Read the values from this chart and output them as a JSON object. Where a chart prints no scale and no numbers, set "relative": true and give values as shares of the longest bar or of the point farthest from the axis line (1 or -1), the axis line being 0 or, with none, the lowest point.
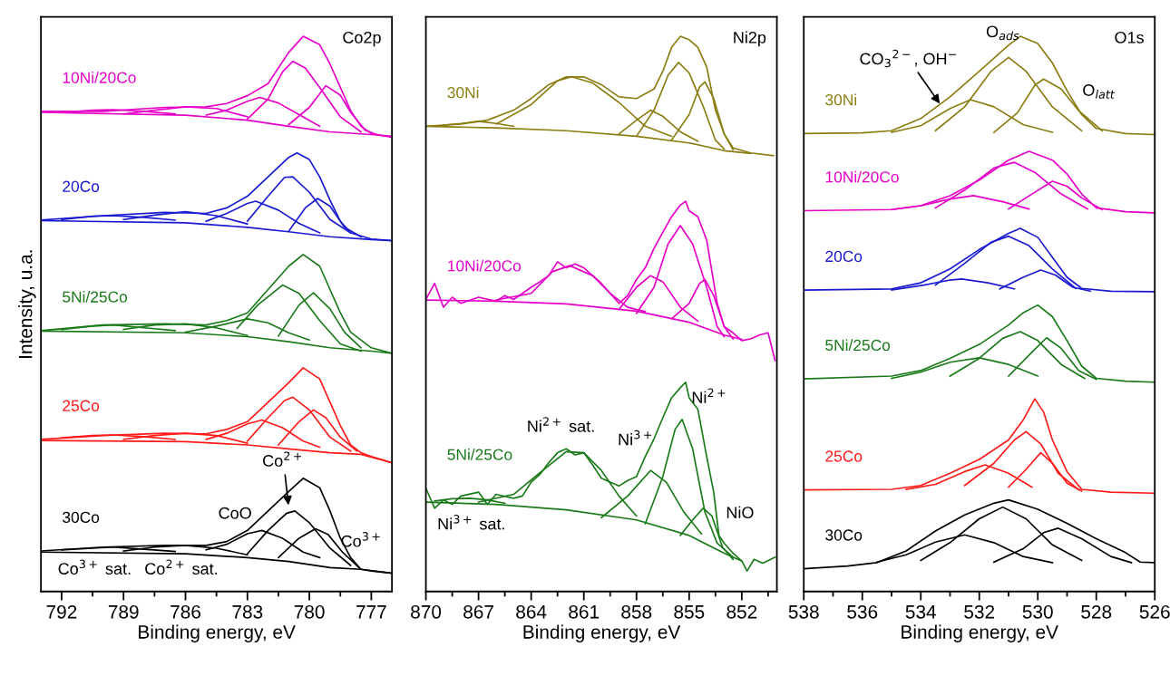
{
  "chart_data": [
    {
      "type": "line",
      "relative": true,
      "xlabel": "Binding energy, eV",
      "ylabel": "Intensity, u.a.",
      "tick_labels": "x",
      "line_style": "solid",
      "xlim": [
        793,
        776
      ],
      "xticks": [
        792,
        {
          "value": 790.5,
          "label": null
        },
        789,
        {
          "value": 787.5,
          "label": null
        },
        786,
        {
          "value": 784.5,
          "label": null
        },
        783,
        {
          "value": 781.5,
          "label": null
        },
        780,
        {
          "value": 778.5,
          "label": null
        },
        777
      ],
      "annotations": [
        "Co2p",
        {
          "text": "Co$^{2+}$",
          "x": 781.0,
          "y": 0.151
        },
        "CoO",
        "Co$^{3+}$",
        "Co$^{3+}$ sat.",
        "Co$^{2+}$ sat."
      ],
      "series": [
        {
          "name": "10Ni/20Co",
          "color": "#e600c8",
          "x": [
            793,
            790,
            787,
            785,
            784,
            783,
            782,
            781,
            780.3,
            779.5,
            779,
            778.5,
            778,
            777.5,
            777,
            776
          ],
          "values": [
            0.865,
            0.865,
            0.872,
            0.873,
            0.879,
            0.893,
            0.915,
            0.971,
            1.0,
            0.985,
            0.95,
            0.908,
            0.866,
            0.838,
            0.825,
            0.818
          ]
        },
        {
          "color": "#e600c8",
          "x": [
            793,
            786,
            783,
            781,
            779,
            777,
            776
          ],
          "values": [
            0.863,
            0.858,
            0.849,
            0.838,
            0.828,
            0.823,
            0.82
          ]
        },
        {
          "color": "#e600c8",
          "x": [
            785,
            784,
            783,
            782.4,
            781.5,
            780.5,
            779.5
          ],
          "values": [
            0.858,
            0.867,
            0.883,
            0.89,
            0.88,
            0.859,
            0.838
          ]
        },
        {
          "color": "#e600c8",
          "x": [
            783,
            782,
            781.3,
            780.8,
            780.2,
            779.5,
            778.5,
            777.5
          ],
          "values": [
            0.851,
            0.887,
            0.936,
            0.955,
            0.943,
            0.908,
            0.855,
            0.828
          ]
        },
        {
          "color": "#e600c8",
          "x": [
            781,
            780,
            779.2,
            778.5,
            778,
            777.3,
            776.8
          ],
          "values": [
            0.841,
            0.872,
            0.911,
            0.894,
            0.863,
            0.831,
            0.824
          ]
        },
        {
          "color": "#e600c8",
          "x": [
            789,
            787.5,
            786,
            784.5,
            783
          ],
          "values": [
            0.86,
            0.867,
            0.873,
            0.87,
            0.855
          ]
        },
        {
          "color": "#e600c8",
          "x": [
            792,
            790.5,
            789.5,
            788,
            786.5
          ],
          "values": [
            0.863,
            0.867,
            0.868,
            0.865,
            0.86
          ]
        },
        {
          "name": "20Co",
          "color": "#1a1ad0",
          "x": [
            793,
            790,
            787,
            785,
            784,
            783,
            782,
            781,
            780.6,
            780,
            779.5,
            779,
            778.5,
            778,
            777,
            776
          ],
          "values": [
            0.669,
            0.677,
            0.683,
            0.681,
            0.691,
            0.712,
            0.747,
            0.782,
            0.79,
            0.778,
            0.747,
            0.705,
            0.667,
            0.646,
            0.635,
            0.632
          ]
        },
        {
          "color": "#1a1ad0",
          "x": [
            793,
            786,
            783,
            781,
            779,
            777,
            776
          ],
          "values": [
            0.668,
            0.664,
            0.656,
            0.648,
            0.639,
            0.634,
            0.632
          ]
        },
        {
          "color": "#1a1ad0",
          "x": [
            785,
            784,
            783,
            782.6,
            781.5,
            780.5,
            779.5
          ],
          "values": [
            0.667,
            0.681,
            0.699,
            0.703,
            0.687,
            0.663,
            0.646
          ]
        },
        {
          "color": "#1a1ad0",
          "x": [
            783,
            782,
            781.2,
            780.8,
            780,
            779,
            778
          ],
          "values": [
            0.667,
            0.712,
            0.746,
            0.747,
            0.719,
            0.67,
            0.646
          ]
        },
        {
          "color": "#1a1ad0",
          "x": [
            781,
            780.2,
            779.6,
            779,
            778.3,
            777.5
          ],
          "values": [
            0.649,
            0.691,
            0.708,
            0.694,
            0.656,
            0.639
          ]
        },
        {
          "color": "#1a1ad0",
          "x": [
            789,
            787.5,
            786,
            784.5,
            783
          ],
          "values": [
            0.67,
            0.678,
            0.684,
            0.677,
            0.662
          ]
        },
        {
          "color": "#1a1ad0",
          "x": [
            792,
            790.5,
            789.5,
            788,
            786.5
          ],
          "values": [
            0.67,
            0.676,
            0.677,
            0.674,
            0.669
          ]
        },
        {
          "name": "5Ni/25Co",
          "color": "#1a7a1a",
          "x": [
            793,
            790,
            787,
            785,
            784,
            783,
            782,
            781,
            780.3,
            779.5,
            779,
            778.5,
            778,
            777,
            776
          ],
          "values": [
            0.47,
            0.48,
            0.482,
            0.48,
            0.488,
            0.502,
            0.544,
            0.586,
            0.607,
            0.586,
            0.544,
            0.502,
            0.467,
            0.439,
            0.429
          ]
        },
        {
          "color": "#1a7a1a",
          "x": [
            793,
            786,
            783,
            781,
            779,
            777,
            776
          ],
          "values": [
            0.469,
            0.466,
            0.459,
            0.45,
            0.439,
            0.433,
            0.429
          ]
        },
        {
          "color": "#1a7a1a",
          "x": [
            786,
            784.5,
            783,
            782,
            781,
            780
          ],
          "values": [
            0.467,
            0.478,
            0.491,
            0.484,
            0.466,
            0.453
          ]
        },
        {
          "color": "#1a7a1a",
          "x": [
            783.5,
            782.5,
            781.3,
            780.5,
            779.5,
            778.5,
            777.5
          ],
          "values": [
            0.474,
            0.516,
            0.552,
            0.537,
            0.488,
            0.446,
            0.433
          ]
        },
        {
          "color": "#1a7a1a",
          "x": [
            781.5,
            780.5,
            779.8,
            779,
            778.3,
            777.5
          ],
          "values": [
            0.46,
            0.516,
            0.538,
            0.509,
            0.467,
            0.439
          ]
        },
        {
          "color": "#1a7a1a",
          "x": [
            789,
            787.5,
            786,
            784.5,
            783
          ],
          "values": [
            0.472,
            0.48,
            0.482,
            0.475,
            0.461
          ]
        },
        {
          "color": "#1a7a1a",
          "x": [
            792,
            790.5,
            789.5,
            788,
            786.5
          ],
          "values": [
            0.472,
            0.478,
            0.48,
            0.475,
            0.47
          ]
        },
        {
          "name": "25Co",
          "color": "#ff1a1a",
          "x": [
            793,
            790,
            787,
            785,
            784,
            783,
            782,
            781,
            780.3,
            779.5,
            779,
            778.5,
            778,
            777.5,
            777,
            776
          ],
          "values": [
            0.274,
            0.281,
            0.285,
            0.284,
            0.292,
            0.306,
            0.341,
            0.376,
            0.403,
            0.383,
            0.341,
            0.299,
            0.264,
            0.25,
            0.243,
            0.232
          ]
        },
        {
          "color": "#ff1a1a",
          "x": [
            793,
            786,
            783,
            781,
            779,
            777.5,
            776
          ],
          "values": [
            0.272,
            0.27,
            0.264,
            0.257,
            0.25,
            0.247,
            0.232
          ]
        },
        {
          "color": "#ff1a1a",
          "x": [
            785,
            784,
            783,
            782.3,
            781.3,
            780.3,
            779.5
          ],
          "values": [
            0.274,
            0.285,
            0.302,
            0.309,
            0.295,
            0.271,
            0.26
          ]
        },
        {
          "color": "#ff1a1a",
          "x": [
            783,
            782,
            781.2,
            780.8,
            780,
            779,
            778
          ],
          "values": [
            0.271,
            0.313,
            0.344,
            0.35,
            0.327,
            0.278,
            0.253
          ]
        },
        {
          "color": "#ff1a1a",
          "x": [
            781.5,
            780.5,
            779.8,
            779.2,
            778.5,
            777.7
          ],
          "values": [
            0.264,
            0.306,
            0.327,
            0.313,
            0.278,
            0.253
          ]
        },
        {
          "color": "#ff1a1a",
          "x": [
            789,
            787.5,
            786,
            784.5,
            783
          ],
          "values": [
            0.274,
            0.281,
            0.285,
            0.281,
            0.267
          ]
        },
        {
          "color": "#ff1a1a",
          "x": [
            792,
            790.5,
            789.5,
            788,
            786.5
          ],
          "values": [
            0.277,
            0.281,
            0.282,
            0.279,
            0.274
          ]
        },
        {
          "name": "30Co",
          "color": "#000000",
          "x": [
            793,
            790,
            787,
            785,
            784,
            783,
            782,
            781,
            780.3,
            779.5,
            779,
            778.5,
            778,
            777.5,
            777,
            776
          ],
          "values": [
            0.073,
            0.08,
            0.083,
            0.083,
            0.09,
            0.11,
            0.145,
            0.18,
            0.204,
            0.187,
            0.145,
            0.096,
            0.061,
            0.04,
            0.037,
            0.033
          ]
        },
        {
          "color": "#000000",
          "x": [
            793,
            786,
            783,
            781,
            779,
            777.5,
            776
          ],
          "values": [
            0.071,
            0.068,
            0.061,
            0.054,
            0.043,
            0.04,
            0.033
          ]
        },
        {
          "color": "#000000",
          "x": [
            785,
            784,
            783,
            782.3,
            781.3,
            780.3,
            779.5
          ],
          "values": [
            0.075,
            0.085,
            0.104,
            0.11,
            0.096,
            0.071,
            0.061
          ]
        },
        {
          "color": "#000000",
          "x": [
            783,
            782,
            781.1,
            780.7,
            780,
            779,
            778
          ],
          "values": [
            0.068,
            0.11,
            0.141,
            0.145,
            0.124,
            0.078,
            0.047
          ]
        },
        {
          "color": "#000000",
          "x": [
            781.5,
            780.5,
            779.7,
            779.1,
            778.4,
            777.6
          ],
          "values": [
            0.061,
            0.096,
            0.113,
            0.103,
            0.071,
            0.043
          ]
        },
        {
          "color": "#000000",
          "x": [
            789,
            787.5,
            786,
            784.5,
            783
          ],
          "values": [
            0.073,
            0.08,
            0.083,
            0.078,
            0.066
          ]
        },
        {
          "color": "#000000",
          "x": [
            792,
            790.5,
            789.5,
            788,
            786.5
          ],
          "values": [
            0.075,
            0.078,
            0.08,
            0.076,
            0.072
          ]
        }
      ]
    },
    {
      "type": "line",
      "relative": true,
      "xlabel": "Binding energy, eV",
      "tick_labels": "x",
      "line_style": "solid",
      "xlim": [
        870,
        850
      ],
      "xticks": [
        870,
        {
          "value": 868.5,
          "label": null
        },
        867,
        {
          "value": 865.5,
          "label": null
        },
        864,
        {
          "value": 862.5,
          "label": null
        },
        861,
        {
          "value": 859.5,
          "label": null
        },
        858,
        {
          "value": 856.5,
          "label": null
        },
        855,
        {
          "value": 853.5,
          "label": null
        },
        852,
        {
          "value": 850.5,
          "label": null
        }
      ],
      "annotations": [
        "Ni2p",
        "Ni$^{2+}$ sat.",
        "Ni$^{3+}$",
        "Ni$^{2+}$",
        "NiO",
        "Ni$^{3+}$ sat."
      ],
      "series": [
        {
          "name": "30Ni",
          "color": "#8b7d12",
          "x": [
            870,
            868,
            866.5,
            865,
            864,
            863,
            862,
            861,
            860,
            859,
            858,
            857,
            856.5,
            856,
            855.5,
            855,
            854.5,
            854,
            853.5,
            853,
            852.5,
            851.5,
            850.2
          ],
          "values": [
            0.838,
            0.842,
            0.849,
            0.867,
            0.888,
            0.913,
            0.927,
            0.927,
            0.913,
            0.891,
            0.888,
            0.905,
            0.937,
            0.98,
            1.0,
            0.994,
            0.98,
            0.945,
            0.867,
            0.824,
            0.799,
            0.79,
            0.785
          ]
        },
        {
          "color": "#8b7d12",
          "x": [
            870,
            866,
            862,
            858,
            855,
            853,
            851.5
          ],
          "values": [
            0.838,
            0.835,
            0.83,
            0.82,
            0.808,
            0.794,
            0.789
          ]
        },
        {
          "color": "#8b7d12",
          "x": [
            866,
            864,
            862.5,
            861.7,
            860.5,
            859,
            857.5,
            856
          ],
          "values": [
            0.842,
            0.877,
            0.92,
            0.927,
            0.916,
            0.881,
            0.838,
            0.82
          ]
        },
        {
          "color": "#8b7d12",
          "x": [
            869,
            868,
            867,
            866,
            865
          ],
          "values": [
            0.84,
            0.843,
            0.847,
            0.843,
            0.838
          ]
        },
        {
          "color": "#8b7d12",
          "x": [
            859,
            858,
            857.2,
            856.5,
            855.5,
            854.5
          ],
          "values": [
            0.824,
            0.849,
            0.867,
            0.856,
            0.828,
            0.811
          ]
        },
        {
          "color": "#8b7d12",
          "x": [
            858,
            857,
            856.2,
            855.6,
            855,
            854.2,
            853.5,
            853
          ],
          "values": [
            0.82,
            0.867,
            0.93,
            0.953,
            0.934,
            0.874,
            0.813,
            0.797
          ]
        },
        {
          "color": "#8b7d12",
          "x": [
            856,
            855,
            854.4,
            854.1,
            853.6,
            853,
            852.5
          ],
          "values": [
            0.813,
            0.859,
            0.909,
            0.918,
            0.888,
            0.824,
            0.796
          ]
        },
        {
          "name": "10Ni/20Co",
          "color": "#e600c8",
          "x": [
            870,
            869.5,
            869,
            868.5,
            868,
            867,
            866,
            865.5,
            865,
            864.5,
            864,
            863.5,
            863,
            862.5,
            862,
            861.5,
            861,
            860.5,
            860,
            859.5,
            859,
            858.5,
            858,
            857.5,
            857,
            856.5,
            856,
            855.5,
            855.2,
            855,
            854.5,
            854,
            853.7,
            853.4,
            853,
            852.5,
            852,
            851.5,
            851,
            850.5,
            850.1
          ],
          "values": [
            0.526,
            0.555,
            0.512,
            0.53,
            0.519,
            0.53,
            0.523,
            0.533,
            0.526,
            0.537,
            0.548,
            0.558,
            0.569,
            0.594,
            0.583,
            0.59,
            0.583,
            0.569,
            0.555,
            0.537,
            0.519,
            0.533,
            0.562,
            0.583,
            0.618,
            0.647,
            0.675,
            0.696,
            0.703,
            0.686,
            0.675,
            0.633,
            0.576,
            0.519,
            0.477,
            0.466,
            0.452,
            0.455,
            0.462,
            0.466,
            0.416
          ]
        },
        {
          "color": "#e600c8",
          "x": [
            870,
            866,
            862,
            858,
            855,
            853,
            852
          ],
          "values": [
            0.525,
            0.523,
            0.518,
            0.505,
            0.485,
            0.462,
            0.454
          ]
        },
        {
          "color": "#e600c8",
          "x": [
            866,
            864,
            862.8,
            861.8,
            860.5,
            859.5,
            858.5,
            857.5
          ],
          "values": [
            0.525,
            0.537,
            0.576,
            0.587,
            0.569,
            0.537,
            0.512,
            0.504
          ]
        },
        {
          "color": "#e600c8",
          "x": [
            859,
            858,
            857.2,
            856.5,
            855.5,
            854.5
          ],
          "values": [
            0.508,
            0.548,
            0.569,
            0.558,
            0.512,
            0.487
          ]
        },
        {
          "color": "#e600c8",
          "x": [
            858,
            857,
            856.2,
            855.5,
            854.8,
            854,
            853.4,
            853
          ],
          "values": [
            0.501,
            0.548,
            0.626,
            0.659,
            0.626,
            0.548,
            0.477,
            0.459
          ]
        },
        {
          "color": "#e600c8",
          "x": [
            856,
            855,
            854.4,
            854.1,
            853.6,
            853,
            852.5
          ],
          "values": [
            0.491,
            0.519,
            0.555,
            0.562,
            0.533,
            0.477,
            0.455
          ]
        },
        {
          "name": "5Ni/25Co",
          "color": "#1a7a1a",
          "x": [
            870,
            869.5,
            869,
            868.5,
            868,
            867,
            866.5,
            866,
            865,
            864.5,
            864,
            863.5,
            863,
            862.5,
            862,
            861.5,
            861,
            860.5,
            860,
            859.5,
            859,
            858.5,
            858,
            857.5,
            857,
            856.5,
            856,
            855.5,
            855.2,
            855,
            854.5,
            854,
            853.6,
            853.3,
            853,
            852.5,
            852,
            851.7,
            851.3,
            850.8,
            850.1
          ],
          "values": [
            0.186,
            0.15,
            0.165,
            0.157,
            0.172,
            0.179,
            0.157,
            0.175,
            0.168,
            0.172,
            0.197,
            0.211,
            0.232,
            0.25,
            0.257,
            0.246,
            0.25,
            0.228,
            0.204,
            0.197,
            0.19,
            0.2,
            0.207,
            0.243,
            0.275,
            0.313,
            0.349,
            0.367,
            0.377,
            0.349,
            0.328,
            0.243,
            0.179,
            0.101,
            0.087,
            0.069,
            0.055,
            0.037,
            0.058,
            0.051,
            0.062
          ]
        },
        {
          "color": "#1a7a1a",
          "x": [
            870,
            866,
            862,
            858,
            855,
            853,
            852
          ],
          "values": [
            0.161,
            0.157,
            0.147,
            0.129,
            0.101,
            0.069,
            0.055
          ]
        },
        {
          "color": "#1a7a1a",
          "x": [
            867,
            865,
            863.5,
            862,
            861,
            860,
            859,
            858
          ],
          "values": [
            0.161,
            0.175,
            0.214,
            0.252,
            0.25,
            0.218,
            0.172,
            0.136
          ]
        },
        {
          "color": "#1a7a1a",
          "x": [
            869.5,
            868.5,
            867.5,
            866.5,
            865.5
          ],
          "values": [
            0.163,
            0.167,
            0.168,
            0.165,
            0.159
          ]
        },
        {
          "color": "#1a7a1a",
          "x": [
            860,
            858.5,
            857.2,
            856.3,
            855.3,
            854.3
          ],
          "values": [
            0.133,
            0.172,
            0.218,
            0.197,
            0.143,
            0.104
          ]
        },
        {
          "color": "#1a7a1a",
          "x": [
            857.5,
            856.5,
            855.8,
            855.4,
            854.8,
            854.1,
            853.4,
            852.5
          ],
          "values": [
            0.122,
            0.207,
            0.292,
            0.31,
            0.257,
            0.143,
            0.087,
            0.062
          ]
        },
        {
          "color": "#1a7a1a",
          "x": [
            855.5,
            854.8,
            854.2,
            853.7,
            853.1,
            852.5
          ],
          "values": [
            0.101,
            0.129,
            0.15,
            0.136,
            0.08,
            0.058
          ]
        }
      ]
    },
    {
      "type": "line",
      "relative": true,
      "xlabel": "Binding energy, eV",
      "tick_labels": "x",
      "line_style": "solid",
      "xlim": [
        538,
        526
      ],
      "xticks": [
        538,
        {
          "value": 537,
          "label": null
        },
        536,
        {
          "value": 535,
          "label": null
        },
        534,
        {
          "value": 533,
          "label": null
        },
        532,
        {
          "value": 531,
          "label": null
        },
        530,
        {
          "value": 529,
          "label": null
        },
        528,
        {
          "value": 527,
          "label": null
        },
        526
      ],
      "annotations": [
        "O1s",
        {
          "text": "CO$_{3}$$^{2−}$, OH$^{−}$",
          "x": 533.3,
          "y": 0.875
        },
        "O$_{ads}$",
        "O$_{latt}$"
      ],
      "series": [
        {
          "name": "30Ni",
          "color": "#8b7d12",
          "x": [
            538,
            536,
            535,
            534,
            533,
            532,
            531,
            530.6,
            530,
            529.5,
            529,
            528.5,
            528,
            527,
            526
          ],
          "values": [
            0.825,
            0.826,
            0.83,
            0.852,
            0.891,
            0.937,
            0.984,
            1.0,
            0.987,
            0.952,
            0.902,
            0.859,
            0.834,
            0.825,
            0.823
          ]
        },
        {
          "color": "#8b7d12",
          "x": [
            535,
            534,
            533,
            532.3,
            531.5,
            530.5,
            529.5
          ],
          "values": [
            0.827,
            0.839,
            0.87,
            0.886,
            0.873,
            0.841,
            0.827
          ]
        },
        {
          "color": "#8b7d12",
          "x": [
            533.5,
            532.5,
            531.6,
            531,
            530.4,
            529.5,
            528.5
          ],
          "values": [
            0.83,
            0.873,
            0.937,
            0.962,
            0.937,
            0.873,
            0.83
          ]
        },
        {
          "color": "#8b7d12",
          "x": [
            531.5,
            530.7,
            530.1,
            529.8,
            529.2,
            528.6,
            527.8
          ],
          "values": [
            0.827,
            0.862,
            0.912,
            0.923,
            0.905,
            0.866,
            0.83
          ]
        },
        {
          "name": "10Ni/20Co",
          "color": "#e600c8",
          "x": [
            538,
            535,
            534,
            533,
            532,
            531,
            530.3,
            529.5,
            529,
            528.5,
            528,
            527,
            526
          ],
          "values": [
            0.686,
            0.688,
            0.695,
            0.713,
            0.741,
            0.777,
            0.793,
            0.777,
            0.752,
            0.716,
            0.691,
            0.684,
            0.682
          ]
        },
        {
          "color": "#e600c8",
          "x": [
            535,
            534,
            533,
            532.2,
            531.2,
            530.3
          ],
          "values": [
            0.688,
            0.695,
            0.707,
            0.713,
            0.702,
            0.689
          ]
        },
        {
          "color": "#e600c8",
          "x": [
            533.5,
            532.5,
            531.5,
            530.8,
            530.1,
            529.2,
            528.3
          ],
          "values": [
            0.691,
            0.723,
            0.763,
            0.773,
            0.755,
            0.716,
            0.689
          ]
        },
        {
          "color": "#e600c8",
          "x": [
            531,
            530.2,
            529.5,
            529,
            528.5,
            527.8
          ],
          "values": [
            0.689,
            0.716,
            0.739,
            0.73,
            0.709,
            0.688
          ]
        },
        {
          "name": "20Co",
          "color": "#1a1ad0",
          "x": [
            538,
            535,
            534,
            533,
            532,
            531,
            530.6,
            530,
            529.5,
            529,
            528.5,
            527.5,
            526
          ],
          "values": [
            0.543,
            0.545,
            0.556,
            0.581,
            0.616,
            0.645,
            0.654,
            0.638,
            0.602,
            0.566,
            0.546,
            0.541,
            0.54
          ]
        },
        {
          "color": "#1a1ad0",
          "x": [
            535,
            534,
            533,
            532.6,
            531.7,
            530.8
          ],
          "values": [
            0.543,
            0.551,
            0.561,
            0.563,
            0.556,
            0.545
          ]
        },
        {
          "color": "#1a1ad0",
          "x": [
            533.5,
            532.5,
            531.6,
            531,
            530.3,
            529.5,
            528.7
          ],
          "values": [
            0.552,
            0.591,
            0.629,
            0.64,
            0.623,
            0.581,
            0.546
          ]
        },
        {
          "color": "#1a1ad0",
          "x": [
            531.3,
            530.5,
            529.9,
            529.4,
            528.8,
            528.2
          ],
          "values": [
            0.545,
            0.566,
            0.579,
            0.57,
            0.548,
            0.541
          ]
        },
        {
          "name": "5Ni/25Co",
          "color": "#1a7a1a",
          "x": [
            538,
            535,
            534,
            533,
            532,
            531,
            530.5,
            530,
            529.5,
            529,
            528.5,
            528,
            527,
            526
          ],
          "values": [
            0.383,
            0.388,
            0.398,
            0.42,
            0.445,
            0.48,
            0.502,
            0.516,
            0.495,
            0.452,
            0.406,
            0.384,
            0.379,
            0.377
          ]
        },
        {
          "color": "#1a7a1a",
          "x": [
            535,
            534,
            533,
            532,
            531,
            530
          ],
          "values": [
            0.384,
            0.395,
            0.413,
            0.421,
            0.409,
            0.388
          ]
        },
        {
          "color": "#1a7a1a",
          "x": [
            533,
            532,
            531.2,
            530.6,
            530,
            529.2,
            528.4
          ],
          "values": [
            0.388,
            0.42,
            0.456,
            0.468,
            0.452,
            0.409,
            0.384
          ]
        },
        {
          "color": "#1a7a1a",
          "x": [
            531,
            530.2,
            529.7,
            529.2,
            528.6,
            528
          ],
          "values": [
            0.388,
            0.431,
            0.457,
            0.438,
            0.398,
            0.382
          ]
        },
        {
          "name": "25Co",
          "color": "#ff1a1a",
          "x": [
            538,
            535,
            534,
            533,
            532,
            531,
            530.5,
            530.1,
            529.8,
            529.5,
            529,
            528.5,
            527.5,
            526
          ],
          "values": [
            0.183,
            0.184,
            0.191,
            0.213,
            0.238,
            0.273,
            0.309,
            0.347,
            0.323,
            0.273,
            0.216,
            0.184,
            0.179,
            0.177
          ]
        },
        {
          "color": "#ff1a1a",
          "x": [
            534.5,
            533.5,
            532.5,
            531.8,
            531,
            530.2
          ],
          "values": [
            0.184,
            0.193,
            0.216,
            0.228,
            0.213,
            0.188
          ]
        },
        {
          "color": "#ff1a1a",
          "x": [
            532.5,
            531.5,
            530.8,
            530.4,
            529.9,
            529.3,
            528.6
          ],
          "values": [
            0.191,
            0.231,
            0.273,
            0.288,
            0.266,
            0.213,
            0.183
          ]
        },
        {
          "color": "#ff1a1a",
          "x": [
            531,
            530.4,
            529.9,
            529.5,
            529,
            528.5
          ],
          "values": [
            0.188,
            0.22,
            0.25,
            0.231,
            0.195,
            0.181
          ]
        },
        {
          "name": "30Co",
          "color": "#000000",
          "x": [
            538,
            536.5,
            535.5,
            534.5,
            533.5,
            532.5,
            531.5,
            531,
            530,
            529,
            528,
            527,
            526.5,
            526
          ],
          "values": [
            0.041,
            0.046,
            0.052,
            0.073,
            0.109,
            0.138,
            0.159,
            0.165,
            0.148,
            0.123,
            0.095,
            0.07,
            0.053,
            0.052
          ]
        },
        {
          "color": "#000000",
          "x": [
            535.5,
            534.5,
            533.5,
            532.5,
            531.5,
            530.5,
            529.5
          ],
          "values": [
            0.053,
            0.066,
            0.089,
            0.102,
            0.088,
            0.063,
            0.052
          ]
        },
        {
          "color": "#000000",
          "x": [
            534,
            533,
            532,
            531.2,
            530.4,
            529.5,
            528.5
          ],
          "values": [
            0.056,
            0.088,
            0.131,
            0.152,
            0.131,
            0.084,
            0.056
          ]
        },
        {
          "color": "#000000",
          "x": [
            531.5,
            530.5,
            529.8,
            529.3,
            528.5,
            527.5,
            526.8
          ],
          "values": [
            0.053,
            0.077,
            0.106,
            0.114,
            0.095,
            0.063,
            0.052
          ]
        }
      ]
    }
  ]
}
